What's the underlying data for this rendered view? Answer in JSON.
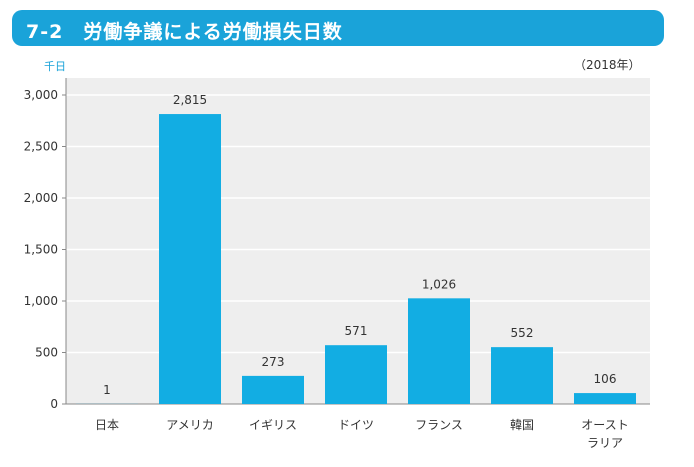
{
  "title": "7-2　労働争議による労働損失日数",
  "unit_label": "千日",
  "year_label": "（2018年）",
  "colors": {
    "title_bar": "#1aa3d9",
    "plot_background": "#eeeeee",
    "bar": "#12ade3",
    "grid": "#ffffff"
  },
  "chart_data": {
    "type": "bar",
    "title": "7-2　労働争議による労働損失日数",
    "ylabel": "千日",
    "xlabel": "",
    "ylim": [
      0,
      3000
    ],
    "yticks": [
      0,
      500,
      1000,
      1500,
      2000,
      2500,
      3000
    ],
    "ytick_labels": [
      "0",
      "500",
      "1,000",
      "1,500",
      "2,000",
      "2,500",
      "3,000"
    ],
    "grid": true,
    "categories": [
      [
        "日本"
      ],
      [
        "アメリカ"
      ],
      [
        "イギリス"
      ],
      [
        "ドイツ"
      ],
      [
        "フランス"
      ],
      [
        "韓国"
      ],
      [
        "オースト",
        "ラリア"
      ]
    ],
    "values": [
      1,
      2815,
      273,
      571,
      1026,
      552,
      106
    ],
    "value_labels": [
      "1",
      "2,815",
      "273",
      "571",
      "1,026",
      "552",
      "106"
    ]
  }
}
